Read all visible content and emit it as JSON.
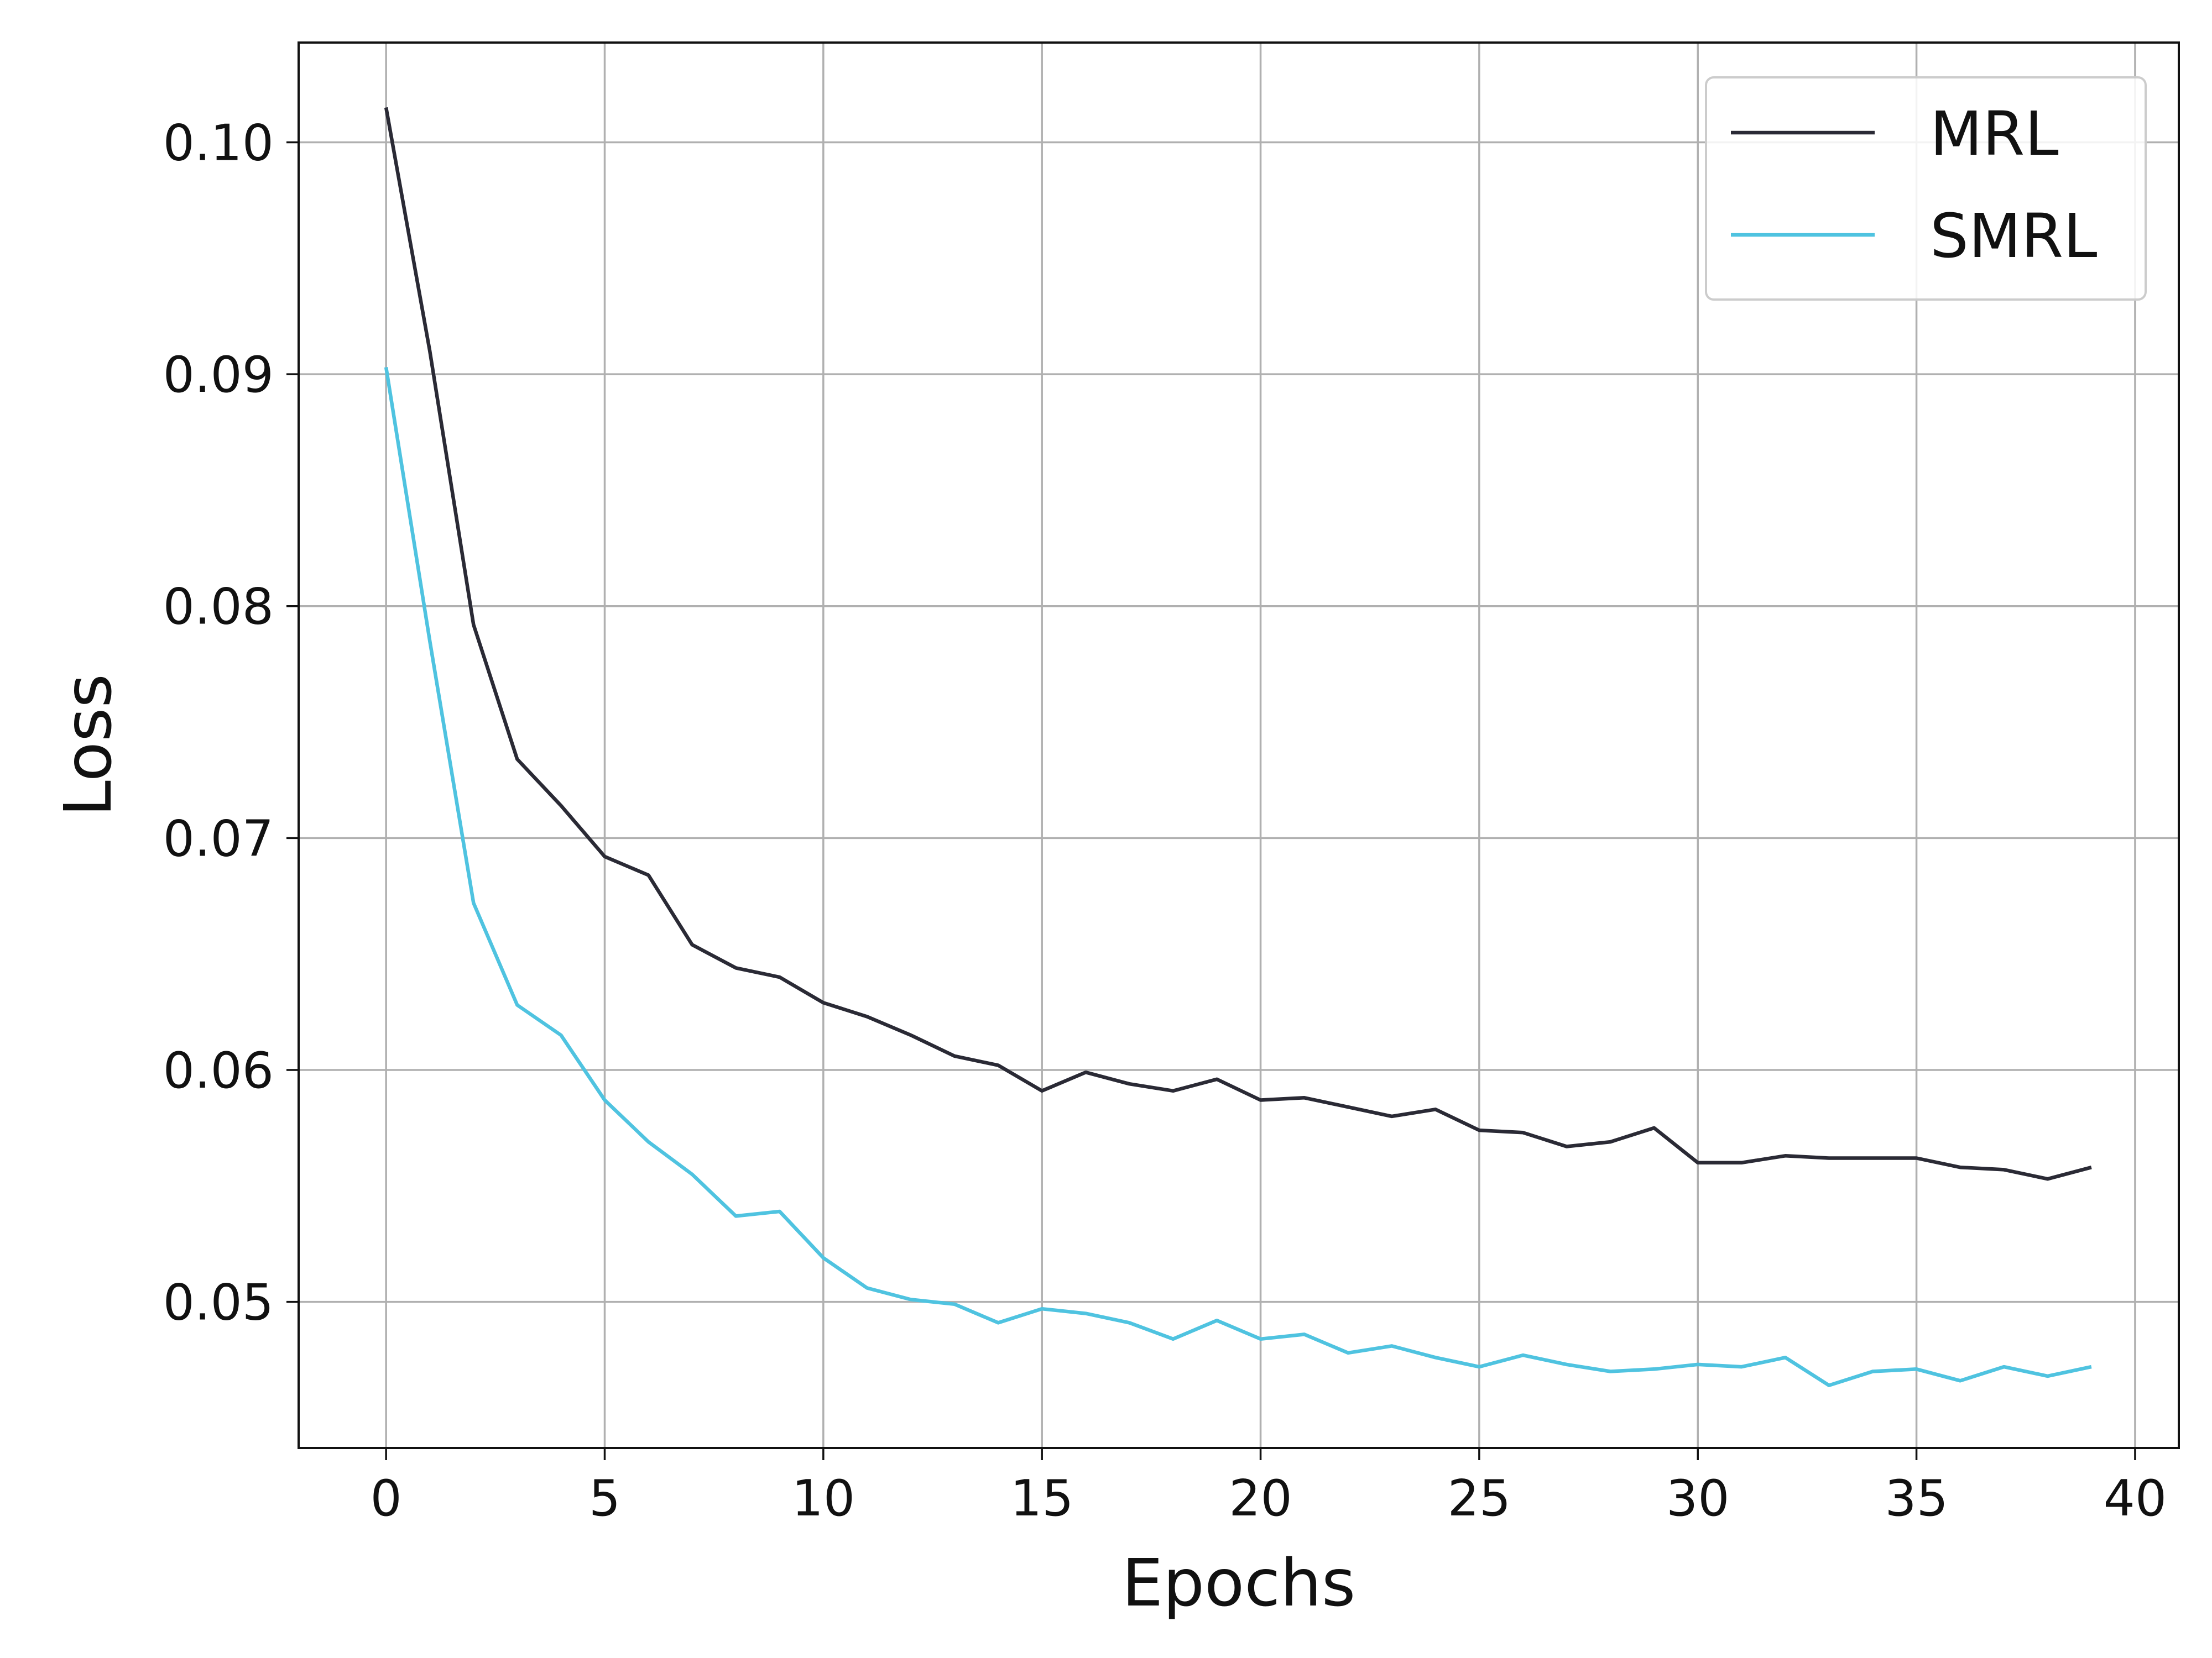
{
  "chart_data": {
    "type": "line",
    "title": "",
    "xlabel": "Epochs",
    "ylabel": "Loss",
    "xlim": [
      -2,
      41
    ],
    "ylim": [
      0.0437,
      0.1043
    ],
    "xticks": [
      0,
      5,
      10,
      15,
      20,
      25,
      30,
      35,
      40
    ],
    "yticks": [
      0.05,
      0.06,
      0.07,
      0.08,
      0.09,
      0.1
    ],
    "xtick_labels": [
      "0",
      "5",
      "10",
      "15",
      "20",
      "25",
      "30",
      "35",
      "40"
    ],
    "ytick_labels": [
      "0.05",
      "0.06",
      "0.07",
      "0.08",
      "0.09",
      "0.10"
    ],
    "grid": true,
    "legend_position": "top-right",
    "x": [
      0,
      1,
      2,
      3,
      4,
      5,
      6,
      7,
      8,
      9,
      10,
      11,
      12,
      13,
      14,
      15,
      16,
      17,
      18,
      19,
      20,
      21,
      22,
      23,
      24,
      25,
      26,
      27,
      28,
      29,
      30,
      31,
      32,
      33,
      34,
      35,
      36,
      37,
      38,
      39
    ],
    "series": [
      {
        "name": "MRL",
        "color": "#2a2a35",
        "values": [
          0.1015,
          0.091,
          0.0792,
          0.0734,
          0.0714,
          0.0692,
          0.0684,
          0.0654,
          0.0644,
          0.064,
          0.0629,
          0.0623,
          0.0615,
          0.0606,
          0.0602,
          0.0591,
          0.0599,
          0.0594,
          0.0591,
          0.0596,
          0.0587,
          0.0588,
          0.0584,
          0.058,
          0.0583,
          0.0574,
          0.0573,
          0.0567,
          0.0569,
          0.0575,
          0.056,
          0.056,
          0.0563,
          0.0562,
          0.0562,
          0.0562,
          0.0558,
          0.0557,
          0.0553,
          0.0558
        ]
      },
      {
        "name": "SMRL",
        "color": "#4fc3e0",
        "values": [
          0.0903,
          0.0785,
          0.0672,
          0.0628,
          0.0615,
          0.0587,
          0.0569,
          0.0555,
          0.0537,
          0.0539,
          0.0519,
          0.0506,
          0.0501,
          0.0499,
          0.0491,
          0.0497,
          0.0495,
          0.0491,
          0.0484,
          0.0492,
          0.0484,
          0.0486,
          0.0478,
          0.0481,
          0.0476,
          0.0472,
          0.0477,
          0.0473,
          0.047,
          0.0471,
          0.0473,
          0.0472,
          0.0476,
          0.0464,
          0.047,
          0.0471,
          0.0466,
          0.0472,
          0.0468,
          0.0472
        ]
      }
    ]
  }
}
